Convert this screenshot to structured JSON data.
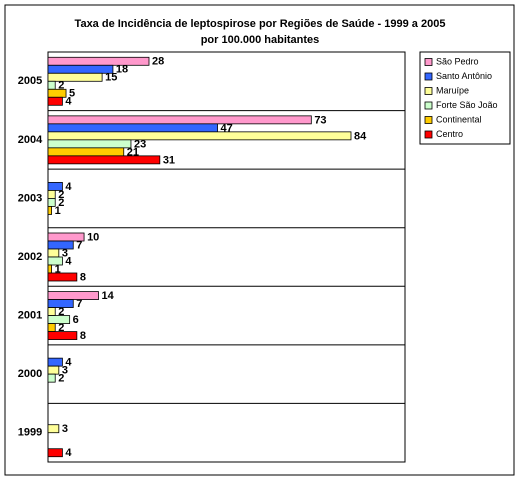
{
  "chart_data": {
    "type": "hbar",
    "title": [
      "Taxa de Incidência de leptospirose por Regiões de Saúde - 1999 a 2005",
      "por 100.000 habitantes"
    ],
    "categories": [
      "2005",
      "2004",
      "2003",
      "2002",
      "2001",
      "2000",
      "1999"
    ],
    "series": [
      {
        "name": "São Pedro",
        "color": "#ff99cc",
        "values": [
          28,
          73,
          null,
          10,
          14,
          null,
          null
        ]
      },
      {
        "name": "Santo Antônio",
        "color": "#3366ff",
        "values": [
          18,
          47,
          4,
          7,
          7,
          4,
          null
        ]
      },
      {
        "name": "Maruípe",
        "color": "#ffff99",
        "values": [
          15,
          84,
          2,
          3,
          2,
          3,
          3
        ]
      },
      {
        "name": "Forte São João",
        "color": "#ccffcc",
        "values": [
          2,
          23,
          2,
          4,
          6,
          2,
          null
        ]
      },
      {
        "name": "Continental",
        "color": "#ffcc00",
        "values": [
          5,
          21,
          1,
          1,
          2,
          null,
          null
        ]
      },
      {
        "name": "Centro",
        "color": "#ff0000",
        "values": [
          4,
          31,
          null,
          8,
          8,
          null,
          4
        ]
      }
    ],
    "legend": "right"
  }
}
